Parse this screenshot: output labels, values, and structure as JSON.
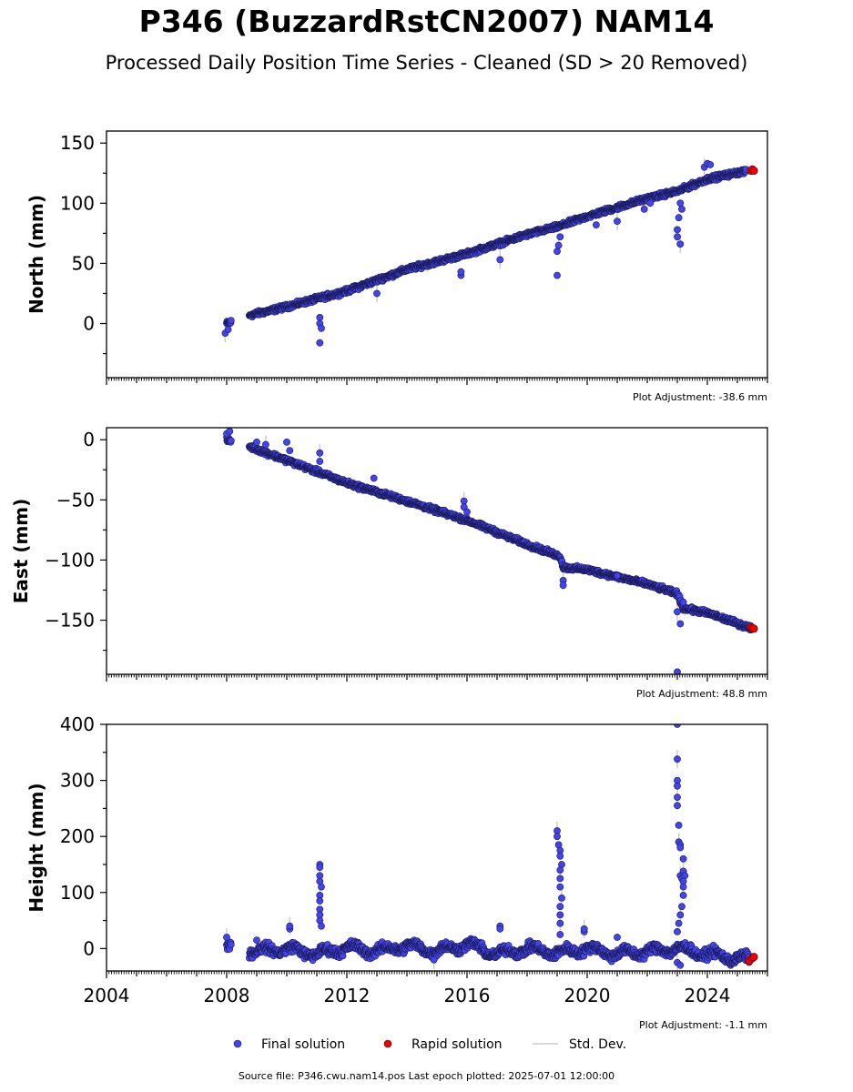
{
  "title": "P346 (BuzzardRstCN2007) NAM14",
  "subtitle": "Processed Daily Position Time Series - Cleaned (SD > 20 Removed)",
  "source_note": "Source file: P346.cwu.nam14.pos  Last epoch plotted: 2025-07-01 12:00:00",
  "legend": {
    "final": "Final solution",
    "rapid": "Rapid solution",
    "std": "Std. Dev."
  },
  "colors": {
    "final": "#4444ee",
    "final_edge": "#1a1a55",
    "rapid": "#ee0000",
    "std": "#cccccc"
  },
  "chart_data": [
    {
      "type": "scatter",
      "ylabel": "North (mm)",
      "adjustment": "Plot Adjustment: -38.6 mm",
      "xlim": [
        2004,
        2026
      ],
      "ylim": [
        -45,
        160
      ],
      "yticks": [
        0,
        50,
        100,
        150
      ],
      "xticks": [],
      "series": [
        {
          "role": "final",
          "trend": [
            [
              2008.0,
              0
            ],
            [
              2008.8,
              7
            ],
            [
              2010,
              14
            ],
            [
              2012,
              27
            ],
            [
              2014,
              45
            ],
            [
              2016,
              58
            ],
            [
              2018,
              74
            ],
            [
              2019.1,
              81
            ],
            [
              2020,
              89
            ],
            [
              2022,
              104
            ],
            [
              2023.0,
              110
            ],
            [
              2024,
              120
            ],
            [
              2025.3,
              127
            ]
          ],
          "outliers": [
            [
              2007.95,
              -8
            ],
            [
              2008.05,
              -5
            ],
            [
              2011.1,
              5
            ],
            [
              2011.1,
              0
            ],
            [
              2011.15,
              -4
            ],
            [
              2011.1,
              -16
            ],
            [
              2013.0,
              25
            ],
            [
              2015.8,
              40
            ],
            [
              2015.8,
              43
            ],
            [
              2017.1,
              53
            ],
            [
              2019.0,
              40
            ],
            [
              2019.0,
              60
            ],
            [
              2019.05,
              65
            ],
            [
              2019.1,
              72
            ],
            [
              2020.3,
              82
            ],
            [
              2021.0,
              85
            ],
            [
              2021.9,
              95
            ],
            [
              2022.1,
              100
            ],
            [
              2023.0,
              72
            ],
            [
              2023.0,
              78
            ],
            [
              2023.05,
              88
            ],
            [
              2023.1,
              66
            ],
            [
              2023.15,
              95
            ],
            [
              2023.1,
              100
            ],
            [
              2023.9,
              130
            ],
            [
              2024.0,
              133
            ],
            [
              2024.1,
              132
            ]
          ]
        },
        {
          "role": "rapid",
          "points": [
            [
              2025.45,
              127
            ],
            [
              2025.5,
              128
            ],
            [
              2025.55,
              127
            ]
          ]
        }
      ]
    },
    {
      "type": "scatter",
      "ylabel": "East (mm)",
      "adjustment": "Plot Adjustment: 48.8 mm",
      "xlim": [
        2004,
        2026
      ],
      "ylim": [
        -195,
        10
      ],
      "yticks": [
        0,
        -50,
        -100,
        -150
      ],
      "xticks": [],
      "series": [
        {
          "role": "final",
          "trend": [
            [
              2008.0,
              0
            ],
            [
              2008.8,
              -6
            ],
            [
              2010,
              -17
            ],
            [
              2012,
              -36
            ],
            [
              2014,
              -51
            ],
            [
              2016,
              -67
            ],
            [
              2018,
              -87
            ],
            [
              2019.1,
              -97
            ],
            [
              2019.2,
              -106
            ],
            [
              2020,
              -108
            ],
            [
              2022,
              -120
            ],
            [
              2023.0,
              -128
            ],
            [
              2023.2,
              -140
            ],
            [
              2024,
              -144
            ],
            [
              2025.5,
              -157
            ]
          ],
          "outliers": [
            [
              2008.0,
              5
            ],
            [
              2008.1,
              7
            ],
            [
              2009.0,
              -2
            ],
            [
              2009.3,
              -4
            ],
            [
              2010.0,
              -2
            ],
            [
              2010.1,
              -9
            ],
            [
              2011.1,
              -11
            ],
            [
              2011.1,
              -18
            ],
            [
              2012.9,
              -32
            ],
            [
              2015.9,
              -51
            ],
            [
              2015.9,
              -56
            ],
            [
              2016.0,
              -60
            ],
            [
              2019.2,
              -117
            ],
            [
              2019.2,
              -121
            ],
            [
              2021.0,
              -113
            ],
            [
              2023.0,
              -143
            ],
            [
              2023.0,
              -193
            ],
            [
              2023.1,
              -153
            ],
            [
              2023.2,
              -135
            ]
          ]
        },
        {
          "role": "rapid",
          "points": [
            [
              2025.45,
              -156
            ],
            [
              2025.5,
              -157
            ],
            [
              2025.55,
              -157
            ]
          ]
        }
      ]
    },
    {
      "type": "scatter",
      "ylabel": "Height (mm)",
      "adjustment": "Plot Adjustment: -1.1 mm",
      "xlim": [
        2004,
        2026
      ],
      "ylim": [
        -40,
        400
      ],
      "yticks": [
        0,
        100,
        200,
        300,
        400
      ],
      "xticks": [
        "2004",
        "2008",
        "2012",
        "2016",
        "2020",
        "2024"
      ],
      "xtick_values": [
        2004,
        2008,
        2012,
        2016,
        2020,
        2024
      ],
      "series": [
        {
          "role": "final",
          "trend": [
            [
              2008.0,
              5
            ],
            [
              2009,
              -5
            ],
            [
              2010,
              0
            ],
            [
              2011,
              -10
            ],
            [
              2012,
              2
            ],
            [
              2013,
              -5
            ],
            [
              2014,
              5
            ],
            [
              2015,
              -5
            ],
            [
              2016,
              8
            ],
            [
              2017,
              -10
            ],
            [
              2018,
              0
            ],
            [
              2019,
              -8
            ],
            [
              2020,
              0
            ],
            [
              2021,
              -10
            ],
            [
              2022,
              -5
            ],
            [
              2023,
              0
            ],
            [
              2024,
              -10
            ],
            [
              2025.4,
              -20
            ]
          ],
          "outliers": [
            [
              2008.0,
              20
            ],
            [
              2009.0,
              15
            ],
            [
              2010.1,
              35
            ],
            [
              2010.1,
              40
            ],
            [
              2011.1,
              150
            ],
            [
              2011.1,
              145
            ],
            [
              2011.1,
              130
            ],
            [
              2011.1,
              120
            ],
            [
              2011.15,
              110
            ],
            [
              2011.1,
              95
            ],
            [
              2011.1,
              85
            ],
            [
              2011.1,
              70
            ],
            [
              2011.1,
              60
            ],
            [
              2011.1,
              50
            ],
            [
              2011.15,
              40
            ],
            [
              2014.9,
              -20
            ],
            [
              2017.1,
              40
            ],
            [
              2017.1,
              35
            ],
            [
              2019.0,
              210
            ],
            [
              2019.0,
              200
            ],
            [
              2019.05,
              185
            ],
            [
              2019.1,
              175
            ],
            [
              2019.1,
              165
            ],
            [
              2019.15,
              150
            ],
            [
              2019.1,
              140
            ],
            [
              2019.1,
              125
            ],
            [
              2019.1,
              110
            ],
            [
              2019.15,
              90
            ],
            [
              2019.1,
              75
            ],
            [
              2019.1,
              60
            ],
            [
              2019.1,
              45
            ],
            [
              2019.1,
              25
            ],
            [
              2019.9,
              30
            ],
            [
              2019.9,
              35
            ],
            [
              2021.0,
              20
            ],
            [
              2023.0,
              400
            ],
            [
              2023.0,
              338
            ],
            [
              2023.0,
              300
            ],
            [
              2023.0,
              290
            ],
            [
              2023.0,
              270
            ],
            [
              2023.0,
              255
            ],
            [
              2023.05,
              220
            ],
            [
              2023.05,
              190
            ],
            [
              2023.1,
              185
            ],
            [
              2023.1,
              180
            ],
            [
              2023.1,
              130
            ],
            [
              2023.15,
              125
            ],
            [
              2023.2,
              160
            ],
            [
              2023.2,
              138
            ],
            [
              2023.25,
              130
            ],
            [
              2023.2,
              120
            ],
            [
              2023.2,
              110
            ],
            [
              2023.2,
              95
            ],
            [
              2023.15,
              75
            ],
            [
              2023.1,
              60
            ],
            [
              2023.05,
              45
            ],
            [
              2023.0,
              30
            ],
            [
              2023.0,
              -25
            ],
            [
              2023.1,
              -30
            ]
          ]
        },
        {
          "role": "rapid",
          "points": [
            [
              2025.4,
              -22
            ],
            [
              2025.5,
              -17
            ],
            [
              2025.55,
              -15
            ]
          ]
        }
      ]
    }
  ]
}
